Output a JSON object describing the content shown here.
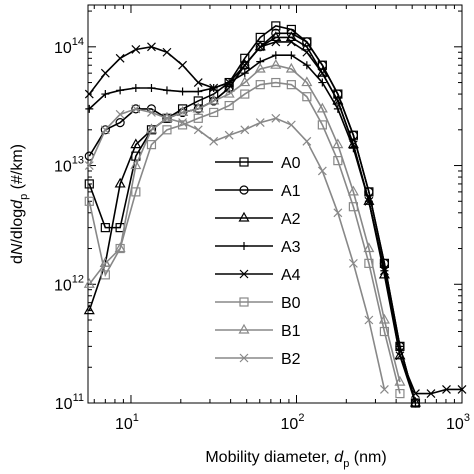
{
  "chart_data": {
    "type": "line",
    "xlabel_parts": [
      "Mobility diameter, ",
      "d",
      "p",
      " (nm)"
    ],
    "ylabel_parts": [
      "d",
      "N",
      "/dlog",
      "d",
      "p",
      " (#/km)"
    ],
    "x": [
      5.6,
      7,
      8.6,
      10.7,
      13.3,
      16.5,
      20.5,
      25.5,
      31.6,
      39.2,
      48.7,
      60.4,
      75,
      93.1,
      115.5,
      143.3,
      177.8,
      220.7,
      273.8,
      339.8,
      421.7,
      523.3,
      649.4,
      805.9,
      1000
    ],
    "xlim": [
      5.5,
      1000
    ],
    "ylim": [
      100000000000.0,
      225000000000000.0
    ],
    "xlog": true,
    "ylog": true,
    "xticks": [
      {
        "value": 10,
        "label": "10",
        "exponent": "1"
      },
      {
        "value": 100,
        "label": "10",
        "exponent": "2"
      },
      {
        "value": 1000,
        "label": "10",
        "exponent": "3"
      }
    ],
    "yticks": [
      {
        "value": 100000000000.0,
        "label": "10",
        "exponent": "11"
      },
      {
        "value": 1000000000000.0,
        "label": "10",
        "exponent": "12"
      },
      {
        "value": 10000000000000.0,
        "label": "10",
        "exponent": "13"
      },
      {
        "value": 100000000000000.0,
        "label": "10",
        "exponent": "14"
      }
    ],
    "legend": "center",
    "series": [
      {
        "name": "A0",
        "color": "#000000",
        "marker": "square",
        "values": [
          7000000000000.0,
          3000000000000.0,
          3000000000000.0,
          12000000000000.0,
          20000000000000.0,
          25000000000000.0,
          30000000000000.0,
          35000000000000.0,
          40000000000000.0,
          50000000000000.0,
          80000000000000.0,
          120000000000000.0,
          150000000000000.0,
          140000000000000.0,
          110000000000000.0,
          70000000000000.0,
          40000000000000.0,
          18000000000000.0,
          6000000000000.0,
          1500000000000.0,
          300000000000.0,
          100000000000.0,
          null,
          null,
          null
        ]
      },
      {
        "name": "A1",
        "color": "#000000",
        "marker": "circle",
        "values": [
          12000000000000.0,
          20000000000000.0,
          23000000000000.0,
          30000000000000.0,
          30000000000000.0,
          25000000000000.0,
          28000000000000.0,
          30000000000000.0,
          35000000000000.0,
          45000000000000.0,
          70000000000000.0,
          100000000000000.0,
          130000000000000.0,
          130000000000000.0,
          110000000000000.0,
          70000000000000.0,
          40000000000000.0,
          18000000000000.0,
          6000000000000.0,
          1500000000000.0,
          300000000000.0,
          100000000000.0,
          null,
          null,
          null
        ]
      },
      {
        "name": "A2",
        "color": "#000000",
        "marker": "triangle",
        "values": [
          600000000000.0,
          1500000000000.0,
          7000000000000.0,
          15000000000000.0,
          20000000000000.0,
          25000000000000.0,
          28000000000000.0,
          30000000000000.0,
          35000000000000.0,
          45000000000000.0,
          70000000000000.0,
          100000000000000.0,
          120000000000000.0,
          120000000000000.0,
          100000000000000.0,
          60000000000000.0,
          35000000000000.0,
          15000000000000.0,
          5000000000000.0,
          1200000000000.0,
          250000000000.0,
          100000000000.0,
          null,
          null,
          null
        ]
      },
      {
        "name": "A3",
        "color": "#000000",
        "marker": "plus",
        "values": [
          30000000000000.0,
          40000000000000.0,
          43000000000000.0,
          45000000000000.0,
          45000000000000.0,
          43000000000000.0,
          42000000000000.0,
          42000000000000.0,
          45000000000000.0,
          50000000000000.0,
          60000000000000.0,
          75000000000000.0,
          85000000000000.0,
          85000000000000.0,
          70000000000000.0,
          50000000000000.0,
          30000000000000.0,
          14000000000000.0,
          5000000000000.0,
          1300000000000.0,
          300000000000.0,
          100000000000.0,
          null,
          null,
          null
        ]
      },
      {
        "name": "A4",
        "color": "#000000",
        "marker": "x",
        "values": [
          40000000000000.0,
          60000000000000.0,
          80000000000000.0,
          95000000000000.0,
          100000000000000.0,
          90000000000000.0,
          70000000000000.0,
          50000000000000.0,
          45000000000000.0,
          50000000000000.0,
          70000000000000.0,
          100000000000000.0,
          110000000000000.0,
          110000000000000.0,
          90000000000000.0,
          60000000000000.0,
          35000000000000.0,
          15000000000000.0,
          5000000000000.0,
          1300000000000.0,
          250000000000.0,
          120000000000.0,
          120000000000.0,
          130000000000.0,
          130000000000.0
        ]
      },
      {
        "name": "B0",
        "color": "#888888",
        "marker": "square",
        "values": [
          5000000000000.0,
          1200000000000.0,
          2000000000000.0,
          6000000000000.0,
          15000000000000.0,
          20000000000000.0,
          22000000000000.0,
          25000000000000.0,
          28000000000000.0,
          32000000000000.0,
          40000000000000.0,
          48000000000000.0,
          50000000000000.0,
          48000000000000.0,
          38000000000000.0,
          22000000000000.0,
          11000000000000.0,
          4500000000000.0,
          1500000000000.0,
          400000000000.0,
          120000000000.0,
          null,
          null,
          null,
          null
        ]
      },
      {
        "name": "B1",
        "color": "#888888",
        "marker": "triangle",
        "values": [
          1000000000000.0,
          1500000000000.0,
          2000000000000.0,
          10000000000000.0,
          20000000000000.0,
          25000000000000.0,
          28000000000000.0,
          30000000000000.0,
          35000000000000.0,
          40000000000000.0,
          50000000000000.0,
          65000000000000.0,
          70000000000000.0,
          65000000000000.0,
          50000000000000.0,
          30000000000000.0,
          15000000000000.0,
          6000000000000.0,
          2000000000000.0,
          500000000000.0,
          150000000000.0,
          null,
          null,
          null,
          null
        ]
      },
      {
        "name": "B2",
        "color": "#888888",
        "marker": "x",
        "values": [
          10000000000000.0,
          20000000000000.0,
          27000000000000.0,
          30000000000000.0,
          28000000000000.0,
          25000000000000.0,
          23000000000000.0,
          20000000000000.0,
          16000000000000.0,
          18000000000000.0,
          20000000000000.0,
          23000000000000.0,
          25000000000000.0,
          22000000000000.0,
          16000000000000.0,
          9000000000000.0,
          4000000000000.0,
          1500000000000.0,
          500000000000.0,
          130000000000.0,
          null,
          null,
          null,
          null,
          null
        ]
      }
    ]
  }
}
